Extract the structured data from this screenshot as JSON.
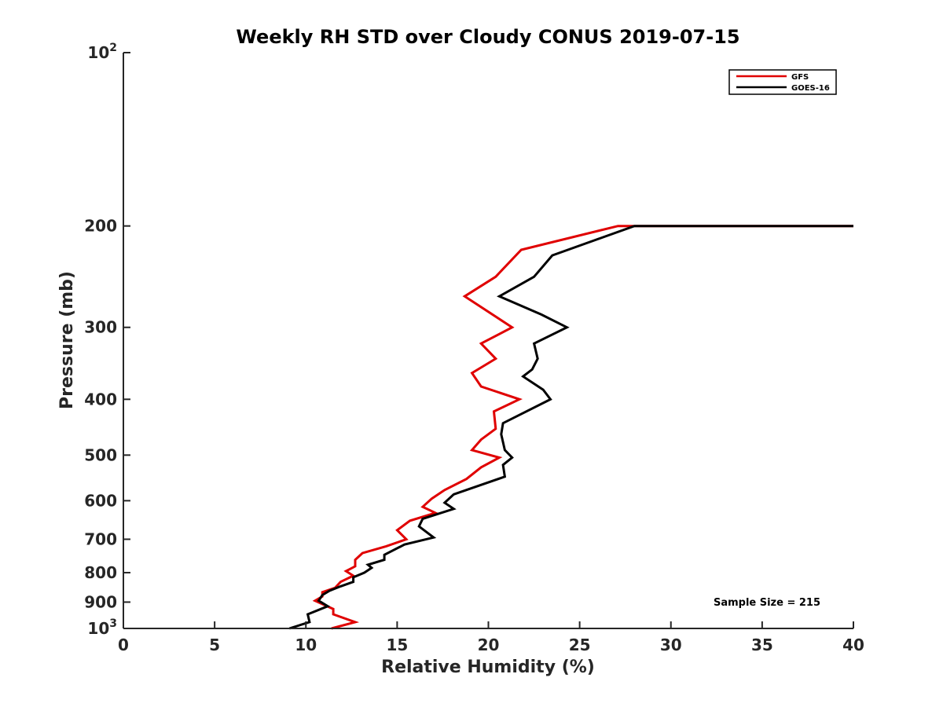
{
  "chart_data": {
    "type": "line",
    "title": "Weekly RH STD over Cloudy CONUS 2019-07-15",
    "xlabel": "Relative Humidity (%)",
    "ylabel": "Pressure (mb)",
    "xlim": [
      0,
      40
    ],
    "ylim": [
      100,
      1000
    ],
    "yscale": "log",
    "y_reversed": true,
    "grid": false,
    "legend_position": "top-right",
    "x_ticks": [
      "0",
      "5",
      "10",
      "15",
      "20",
      "25",
      "30",
      "35",
      "40"
    ],
    "y_ticks": [
      {
        "value": 100,
        "base": "10",
        "exp": "2"
      },
      {
        "value": 200,
        "label": "200"
      },
      {
        "value": 300,
        "label": "300"
      },
      {
        "value": 400,
        "label": "400"
      },
      {
        "value": 500,
        "label": "500"
      },
      {
        "value": 600,
        "label": "600"
      },
      {
        "value": 700,
        "label": "700"
      },
      {
        "value": 800,
        "label": "800"
      },
      {
        "value": 900,
        "label": "900"
      },
      {
        "value": 1000,
        "base": "10",
        "exp": "3"
      }
    ],
    "annotation": "Sample Size = 215",
    "series": [
      {
        "name": "GFS",
        "color": "#e00000",
        "points": [
          [
            40.0,
            200
          ],
          [
            28.0,
            200
          ],
          [
            27.1,
            200
          ],
          [
            21.8,
            220
          ],
          [
            20.4,
            245
          ],
          [
            18.7,
            265
          ],
          [
            21.3,
            300
          ],
          [
            19.6,
            320
          ],
          [
            20.4,
            340
          ],
          [
            19.1,
            360
          ],
          [
            19.6,
            380
          ],
          [
            21.7,
            400
          ],
          [
            20.3,
            420
          ],
          [
            20.4,
            450
          ],
          [
            19.6,
            470
          ],
          [
            19.1,
            490
          ],
          [
            20.6,
            505
          ],
          [
            19.6,
            525
          ],
          [
            18.8,
            550
          ],
          [
            17.6,
            575
          ],
          [
            16.9,
            595
          ],
          [
            16.4,
            615
          ],
          [
            17.1,
            630
          ],
          [
            15.7,
            650
          ],
          [
            15.0,
            675
          ],
          [
            15.5,
            700
          ],
          [
            14.4,
            720
          ],
          [
            13.1,
            740
          ],
          [
            12.7,
            760
          ],
          [
            12.7,
            780
          ],
          [
            12.2,
            795
          ],
          [
            12.6,
            810
          ],
          [
            11.9,
            830
          ],
          [
            11.6,
            850
          ],
          [
            10.9,
            865
          ],
          [
            10.9,
            880
          ],
          [
            10.5,
            895
          ],
          [
            11.0,
            910
          ],
          [
            11.5,
            925
          ],
          [
            11.5,
            945
          ],
          [
            12.7,
            975
          ],
          [
            11.4,
            1000
          ]
        ]
      },
      {
        "name": "GOES-16",
        "color": "#000000",
        "points": [
          [
            40.0,
            200
          ],
          [
            28.0,
            200
          ],
          [
            23.5,
            225
          ],
          [
            22.5,
            245
          ],
          [
            20.6,
            265
          ],
          [
            22.9,
            285
          ],
          [
            24.3,
            300
          ],
          [
            22.5,
            320
          ],
          [
            22.7,
            340
          ],
          [
            22.4,
            355
          ],
          [
            21.9,
            365
          ],
          [
            23.0,
            385
          ],
          [
            23.4,
            400
          ],
          [
            20.8,
            440
          ],
          [
            20.7,
            460
          ],
          [
            20.9,
            490
          ],
          [
            21.3,
            505
          ],
          [
            20.8,
            520
          ],
          [
            20.9,
            545
          ],
          [
            18.1,
            585
          ],
          [
            17.6,
            605
          ],
          [
            18.1,
            620
          ],
          [
            16.4,
            645
          ],
          [
            16.2,
            665
          ],
          [
            17.0,
            695
          ],
          [
            15.4,
            715
          ],
          [
            14.3,
            745
          ],
          [
            14.3,
            760
          ],
          [
            13.4,
            775
          ],
          [
            13.6,
            785
          ],
          [
            13.2,
            800
          ],
          [
            12.6,
            815
          ],
          [
            12.6,
            830
          ],
          [
            11.9,
            845
          ],
          [
            11.3,
            860
          ],
          [
            10.9,
            875
          ],
          [
            10.7,
            895
          ],
          [
            11.2,
            915
          ],
          [
            10.1,
            945
          ],
          [
            10.2,
            975
          ],
          [
            9.1,
            1000
          ]
        ]
      }
    ]
  }
}
